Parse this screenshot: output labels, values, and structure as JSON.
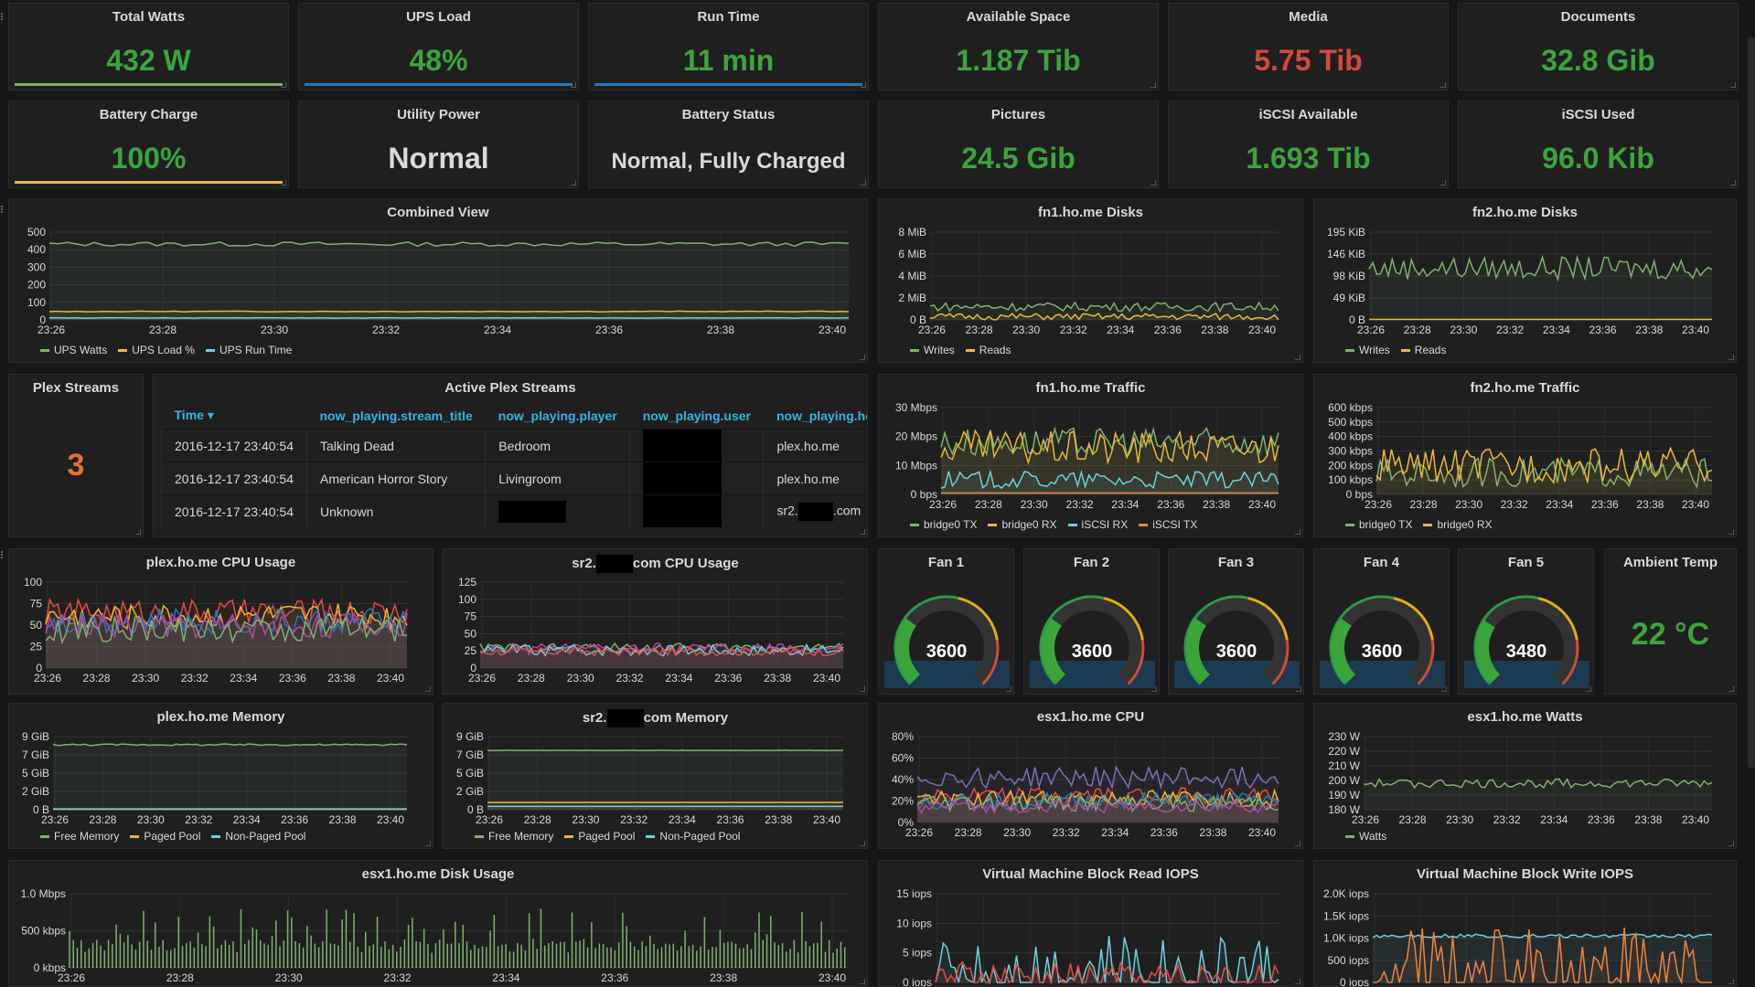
{
  "colors": {
    "green": "#299c46",
    "value_green": "#3aa63a",
    "red": "#d44a3a",
    "orange": "#e0752d",
    "white": "#d8d9da",
    "yellow": "#eab839",
    "cyan": "#6ed0e0",
    "line_green": "#7eb26d",
    "blue": "#1f78c1",
    "link_blue": "#33b5e5"
  },
  "stats_row1": [
    {
      "title": "Total Watts",
      "value": "432 W",
      "color": "#3aa63a",
      "spark": "#7eb26d"
    },
    {
      "title": "UPS Load",
      "value": "48%",
      "color": "#3aa63a",
      "spark": "#1f78c1"
    },
    {
      "title": "Run Time",
      "value": "11 min",
      "color": "#3aa63a",
      "spark": "#1f78c1"
    },
    {
      "title": "Available Space",
      "value": "1.187 Tib",
      "color": "#3aa63a",
      "spark": ""
    },
    {
      "title": "Media",
      "value": "5.75 Tib",
      "color": "#d44a3a",
      "spark": ""
    },
    {
      "title": "Documents",
      "value": "32.8 Gib",
      "color": "#3aa63a",
      "spark": ""
    }
  ],
  "stats_row2": [
    {
      "title": "Battery Charge",
      "value": "100%",
      "color": "#3aa63a",
      "spark": "#eab839"
    },
    {
      "title": "Utility Power",
      "value": "Normal",
      "color": "#d8d9da",
      "spark": ""
    },
    {
      "title": "Battery Status",
      "value": "Normal, Fully Charged",
      "color": "#d8d9da",
      "spark": ""
    },
    {
      "title": "Pictures",
      "value": "24.5 Gib",
      "color": "#3aa63a",
      "spark": ""
    },
    {
      "title": "iSCSI Available",
      "value": "1.693 Tib",
      "color": "#3aa63a",
      "spark": ""
    },
    {
      "title": "iSCSI Used",
      "value": "96.0 Kib",
      "color": "#3aa63a",
      "spark": ""
    }
  ],
  "time_ticks": [
    "23:26",
    "23:28",
    "23:30",
    "23:32",
    "23:34",
    "23:36",
    "23:38",
    "23:40"
  ],
  "plex": {
    "count_title": "Plex Streams",
    "count_value": "3",
    "table_title": "Active Plex Streams",
    "columns": [
      "Time",
      "now_playing.stream_title",
      "now_playing.player",
      "now_playing.user",
      "now_playing.host"
    ],
    "rows": [
      {
        "time": "2016-12-17 23:40:54",
        "title": "Talking Dead",
        "player": "Bedroom",
        "host": "plex.ho.me"
      },
      {
        "time": "2016-12-17 23:40:54",
        "title": "American Horror Story",
        "player": "Livingroom",
        "host": "plex.ho.me"
      },
      {
        "time": "2016-12-17 23:40:54",
        "title": "Unknown",
        "player": "",
        "host_prefix": "sr2.",
        "host_suffix": ".com"
      }
    ]
  },
  "fans": [
    {
      "title": "Fan 1",
      "value": "3600"
    },
    {
      "title": "Fan 2",
      "value": "3600"
    },
    {
      "title": "Fan 3",
      "value": "3600"
    },
    {
      "title": "Fan 4",
      "value": "3600"
    },
    {
      "title": "Fan 5",
      "value": "3480"
    }
  ],
  "ambient": {
    "title": "Ambient Temp",
    "value": "22 °C"
  },
  "chart_data": [
    {
      "id": "combined",
      "type": "line",
      "title": "Combined View",
      "y_ticks": [
        "500",
        "400",
        "300",
        "200",
        "100",
        "0"
      ],
      "ylim": [
        0,
        500
      ],
      "series": [
        {
          "name": "UPS Watts",
          "color": "#7eb26d",
          "level": 432,
          "noise": 12
        },
        {
          "name": "UPS Load %",
          "color": "#eab839",
          "level": 48,
          "noise": 2
        },
        {
          "name": "UPS Run Time",
          "color": "#6ed0e0",
          "level": 11,
          "noise": 1
        }
      ]
    },
    {
      "id": "fn1disks",
      "type": "line",
      "title": "fn1.ho.me Disks",
      "y_ticks": [
        "8 MiB",
        "6 MiB",
        "4 MiB",
        "2 MiB",
        "0 B"
      ],
      "ylim": [
        0,
        8
      ],
      "series": [
        {
          "name": "Writes",
          "color": "#7eb26d",
          "level": 1.2,
          "noise": 0.4
        },
        {
          "name": "Reads",
          "color": "#eab839",
          "level": 0.3,
          "noise": 0.3
        }
      ]
    },
    {
      "id": "fn2disks",
      "type": "line",
      "title": "fn2.ho.me Disks",
      "y_ticks": [
        "195 KiB",
        "146 KiB",
        "98 KiB",
        "49 KiB",
        "0 B"
      ],
      "ylim": [
        0,
        195
      ],
      "series": [
        {
          "name": "Writes",
          "color": "#7eb26d",
          "level": 115,
          "noise": 25
        },
        {
          "name": "Reads",
          "color": "#eab839",
          "level": 1,
          "noise": 0
        }
      ]
    },
    {
      "id": "fn1traffic",
      "type": "line",
      "title": "fn1.ho.me Traffic",
      "y_ticks": [
        "30 Mbps",
        "20 Mbps",
        "10 Mbps",
        "0 bps"
      ],
      "ylim": [
        0,
        30
      ],
      "series": [
        {
          "name": "bridge0 TX",
          "color": "#7eb26d",
          "level": 18,
          "noise": 5
        },
        {
          "name": "bridge0 RX",
          "color": "#eab839",
          "level": 16,
          "noise": 6
        },
        {
          "name": "iSCSI RX",
          "color": "#6ed0e0",
          "level": 5,
          "noise": 3
        },
        {
          "name": "iSCSI TX",
          "color": "#ef843c",
          "level": 0.5,
          "noise": 0
        }
      ]
    },
    {
      "id": "fn2traffic",
      "type": "line",
      "title": "fn2.ho.me Traffic",
      "y_ticks": [
        "600 kbps",
        "500 kbps",
        "400 kbps",
        "300 kbps",
        "200 kbps",
        "100 kbps",
        "0 bps"
      ],
      "ylim": [
        0,
        600
      ],
      "series": [
        {
          "name": "bridge0 TX",
          "color": "#7eb26d",
          "level": 150,
          "noise": 100
        },
        {
          "name": "bridge0 RX",
          "color": "#eab839",
          "level": 200,
          "noise": 120
        }
      ]
    },
    {
      "id": "plexcpu",
      "type": "line",
      "title": "plex.ho.me CPU Usage",
      "y_ticks": [
        "100",
        "75",
        "50",
        "25",
        "0"
      ],
      "ylim": [
        0,
        100
      ],
      "legend": false,
      "series": [
        {
          "name": "",
          "color": "#e24d42",
          "level": 65,
          "noise": 15
        },
        {
          "name": "",
          "color": "#eab839",
          "level": 60,
          "noise": 15
        },
        {
          "name": "",
          "color": "#1f78c1",
          "level": 55,
          "noise": 15
        },
        {
          "name": "",
          "color": "#ba43a9",
          "level": 50,
          "noise": 15
        },
        {
          "name": "",
          "color": "#7eb26d",
          "level": 45,
          "noise": 15
        }
      ]
    },
    {
      "id": "srcpu",
      "type": "line",
      "title_prefix": "sr2.",
      "title_suffix": "com CPU Usage",
      "y_ticks": [
        "125",
        "100",
        "75",
        "50",
        "25",
        "0"
      ],
      "ylim": [
        0,
        125
      ],
      "legend": false,
      "series": [
        {
          "name": "",
          "color": "#7eb26d",
          "level": 30,
          "noise": 6
        },
        {
          "name": "",
          "color": "#ba43a9",
          "level": 28,
          "noise": 8
        },
        {
          "name": "",
          "color": "#6ed0e0",
          "level": 26,
          "noise": 8
        },
        {
          "name": "",
          "color": "#e24d42",
          "level": 24,
          "noise": 6
        }
      ]
    },
    {
      "id": "plexmem",
      "type": "line",
      "title": "plex.ho.me Memory",
      "y_ticks": [
        "9 GiB",
        "7 GiB",
        "5 GiB",
        "2 GiB",
        "0 B"
      ],
      "ylim": [
        0,
        9
      ],
      "series": [
        {
          "name": "Free Memory",
          "color": "#7eb26d",
          "level": 8,
          "noise": 0.1
        },
        {
          "name": "Paged Pool",
          "color": "#eab839",
          "level": 0.1,
          "noise": 0
        },
        {
          "name": "Non-Paged Pool",
          "color": "#6ed0e0",
          "level": 0.05,
          "noise": 0
        }
      ]
    },
    {
      "id": "srmem",
      "type": "line",
      "title_prefix": "sr2.",
      "title_suffix": "com Memory",
      "y_ticks": [
        "9 GiB",
        "7 GiB",
        "5 GiB",
        "2 GiB",
        "0 B"
      ],
      "ylim": [
        0,
        9
      ],
      "series": [
        {
          "name": "Free Memory",
          "color": "#7eb26d",
          "level": 7.3,
          "noise": 0.02
        },
        {
          "name": "Paged Pool",
          "color": "#eab839",
          "level": 0.9,
          "noise": 0
        },
        {
          "name": "Non-Paged Pool",
          "color": "#6ed0e0",
          "level": 0.4,
          "noise": 0
        }
      ]
    },
    {
      "id": "esxcpu",
      "type": "line",
      "title": "esx1.ho.me CPU",
      "y_ticks": [
        "80%",
        "60%",
        "40%",
        "20%",
        "0%"
      ],
      "ylim": [
        0,
        80
      ],
      "legend": false,
      "series": [
        {
          "name": "",
          "color": "#806eb7",
          "level": 42,
          "noise": 10
        },
        {
          "name": "",
          "color": "#e24d42",
          "level": 25,
          "noise": 8
        },
        {
          "name": "",
          "color": "#eab839",
          "level": 22,
          "noise": 8
        },
        {
          "name": "",
          "color": "#1f78c1",
          "level": 20,
          "noise": 8
        },
        {
          "name": "",
          "color": "#7eb26d",
          "level": 18,
          "noise": 8
        },
        {
          "name": "",
          "color": "#ba43a9",
          "level": 15,
          "noise": 6
        }
      ]
    },
    {
      "id": "esxwatts",
      "type": "line",
      "title": "esx1.ho.me Watts",
      "y_ticks": [
        "230 W",
        "220 W",
        "210 W",
        "200 W",
        "190 W",
        "180 W"
      ],
      "ylim": [
        180,
        230
      ],
      "series": [
        {
          "name": "Watts",
          "color": "#7eb26d",
          "level": 198,
          "noise": 3
        }
      ]
    },
    {
      "id": "esxdisk",
      "type": "bar",
      "title": "esx1.ho.me Disk Usage",
      "y_ticks": [
        "1.0 Mbps",
        "500 kbps",
        "0 kbps"
      ],
      "ylim": [
        0,
        1
      ],
      "legend": false,
      "series": [
        {
          "name": "",
          "color": "#7eb26d",
          "level": 0.2,
          "noise": 0.6
        },
        {
          "name": "",
          "color": "#eab839",
          "level": 0.01,
          "noise": 0
        }
      ]
    },
    {
      "id": "vmread",
      "type": "line",
      "title": "Virtual Machine Block Read IOPS",
      "y_ticks": [
        "15 iops",
        "10 iops",
        "5 iops",
        "0 iops"
      ],
      "ylim": [
        0,
        15
      ],
      "legend": false,
      "series": [
        {
          "name": "",
          "color": "#6ed0e0",
          "level": 2,
          "noise": 6
        },
        {
          "name": "",
          "color": "#e24d42",
          "level": 0.5,
          "noise": 3
        }
      ]
    },
    {
      "id": "vmwrite",
      "type": "line",
      "title": "Virtual Machine Block Write IOPS",
      "y_ticks": [
        "2.0K iops",
        "1.5K iops",
        "1.0K iops",
        "500 iops",
        "0 iops"
      ],
      "ylim": [
        0,
        2000
      ],
      "legend": false,
      "series": [
        {
          "name": "",
          "color": "#6ed0e0",
          "level": 1050,
          "noise": 40
        },
        {
          "name": "",
          "color": "#ef843c",
          "level": 60,
          "noise": 1200
        }
      ]
    }
  ]
}
